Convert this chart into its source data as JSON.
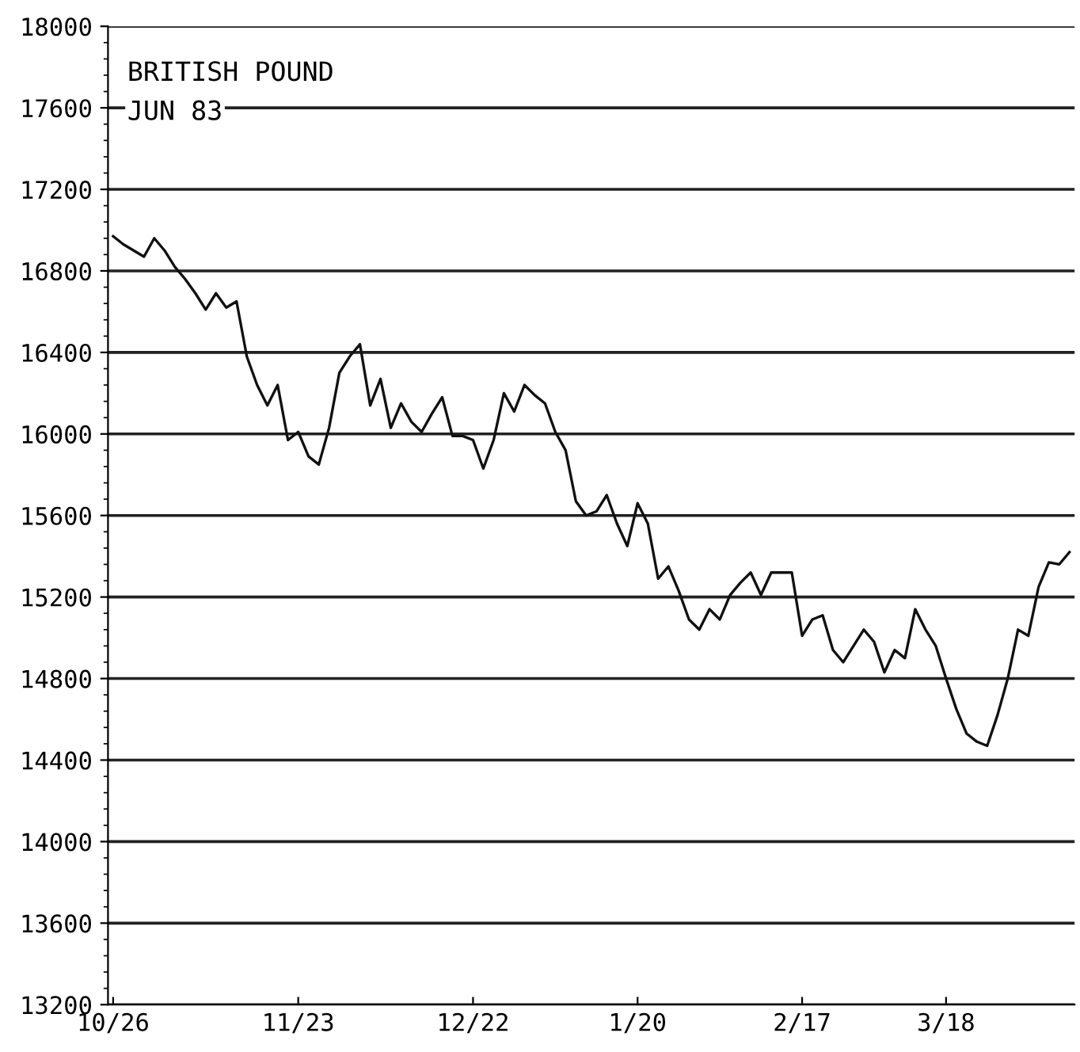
{
  "chart_data": {
    "type": "line",
    "title": "BRITISH POUND",
    "subtitle": "JUN 83",
    "categories": [
      "10/26",
      null,
      null,
      null,
      null,
      null,
      null,
      null,
      null,
      null,
      null,
      null,
      null,
      null,
      null,
      null,
      null,
      null,
      "11/23",
      null,
      null,
      null,
      null,
      null,
      null,
      null,
      null,
      null,
      null,
      null,
      null,
      null,
      null,
      null,
      null,
      "12/22",
      null,
      null,
      null,
      null,
      null,
      null,
      null,
      null,
      null,
      null,
      null,
      null,
      null,
      null,
      null,
      "1/20",
      null,
      null,
      null,
      null,
      null,
      null,
      null,
      null,
      null,
      null,
      null,
      null,
      null,
      null,
      null,
      "2/17",
      null,
      null,
      null,
      null,
      null,
      null,
      null,
      null,
      null,
      null,
      null,
      null,
      null,
      "3/18",
      null,
      null,
      null,
      null,
      null,
      null,
      null,
      null,
      null,
      null,
      null,
      null
    ],
    "series": [
      {
        "color": "#111111",
        "values": [
          16970,
          16930,
          16900,
          16870,
          16960,
          16900,
          16820,
          16760,
          16690,
          16610,
          16690,
          16620,
          16650,
          16380,
          16240,
          16140,
          16240,
          15970,
          16010,
          15890,
          15850,
          16030,
          16300,
          16380,
          16440,
          16140,
          16270,
          16030,
          16150,
          16060,
          16010,
          16100,
          16180,
          15990,
          15990,
          15970,
          15830,
          15970,
          16200,
          16110,
          16240,
          16190,
          16150,
          16010,
          15920,
          15670,
          15600,
          15620,
          15700,
          15560,
          15450,
          15660,
          15560,
          15290,
          15350,
          15230,
          15090,
          15040,
          15140,
          15090,
          15210,
          15270,
          15320,
          15210,
          15320,
          15320,
          15320,
          15010,
          15090,
          15110,
          14940,
          14880,
          14960,
          15040,
          14980,
          14830,
          14940,
          14900,
          15140,
          15040,
          14960,
          14800,
          14650,
          14530,
          14490,
          14470,
          14620,
          14800,
          15040,
          15010,
          15250,
          15370,
          15360,
          15420
        ]
      }
    ],
    "ylim": [
      13200,
      18000
    ],
    "yticks": [
      13200,
      13600,
      14000,
      14400,
      14800,
      15200,
      15600,
      16000,
      16400,
      16800,
      17200,
      17600,
      18000
    ],
    "grid": "y",
    "marker": "none",
    "line_style": "solid"
  }
}
